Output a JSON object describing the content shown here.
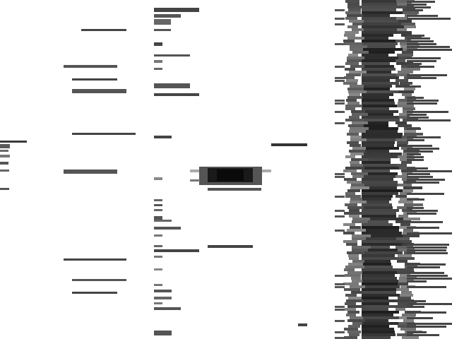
{
  "image": {
    "description_visible_text": "",
    "colors": {
      "background": "#ffffff",
      "dark": "#1a1a1a",
      "mid": "#4a4a4a",
      "light": "#8a8a8a"
    }
  }
}
